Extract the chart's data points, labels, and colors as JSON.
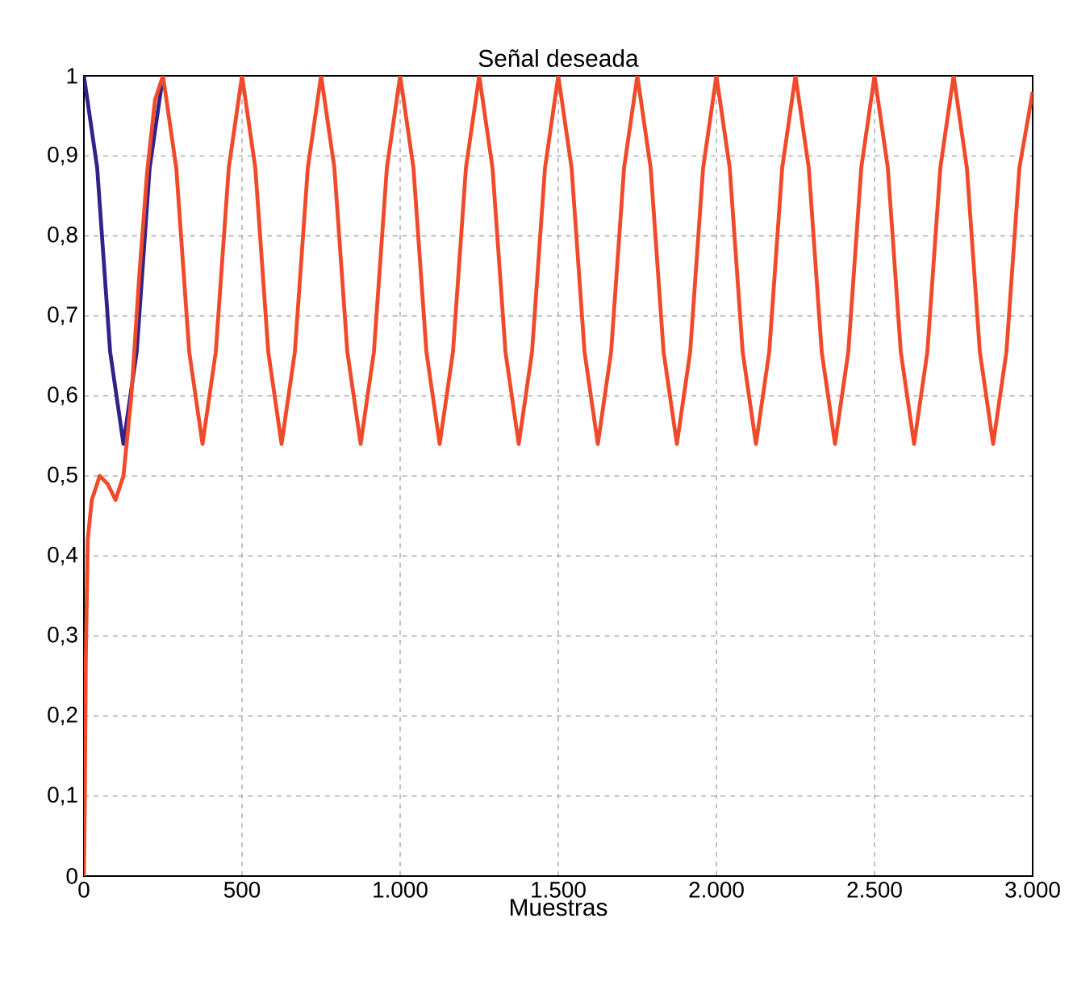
{
  "chart_data": {
    "type": "line",
    "title": "Señal deseada",
    "xlabel": "Muestras",
    "xlim": [
      0,
      3000
    ],
    "ylim": [
      0,
      1
    ],
    "xticks": [
      0,
      500,
      {
        "value": 1000,
        "label": "1.000"
      },
      {
        "value": 1500,
        "label": "1.500"
      },
      {
        "value": 2000,
        "label": "2.000"
      },
      {
        "value": 2500,
        "label": "2.500"
      },
      {
        "value": 3000,
        "label": "3.000"
      }
    ],
    "yticks": [
      0,
      {
        "value": 0.1,
        "label": "0,1"
      },
      {
        "value": 0.2,
        "label": "0,2"
      },
      {
        "value": 0.3,
        "label": "0,3"
      },
      {
        "value": 0.4,
        "label": "0,4"
      },
      {
        "value": 0.5,
        "label": "0,5"
      },
      {
        "value": 0.6,
        "label": "0,6"
      },
      {
        "value": 0.7,
        "label": "0,7"
      },
      {
        "value": 0.8,
        "label": "0,8"
      },
      {
        "value": 0.9,
        "label": "0,9"
      },
      1
    ],
    "grid": true,
    "line_style": "solid",
    "marker": "none",
    "series": [
      {
        "color": "#33218a",
        "x": [
          0,
          42,
          83,
          125,
          167,
          208,
          250
        ],
        "values": [
          1,
          0.885,
          0.655,
          0.54,
          0.655,
          0.885,
          1
        ]
      },
      {
        "color": "#f04a2a",
        "x": [
          0,
          3,
          6,
          12,
          25,
          50,
          75,
          100,
          125,
          150,
          175,
          200,
          225,
          250,
          292,
          333,
          375,
          417,
          458,
          500,
          542,
          583,
          625,
          667,
          708,
          750,
          792,
          833,
          875,
          917,
          958,
          1000,
          1042,
          1083,
          1125,
          1167,
          1208,
          1250,
          1292,
          1333,
          1375,
          1417,
          1458,
          1500,
          1542,
          1583,
          1625,
          1667,
          1708,
          1750,
          1792,
          1833,
          1875,
          1917,
          1958,
          2000,
          2042,
          2083,
          2125,
          2167,
          2208,
          2250,
          2292,
          2333,
          2375,
          2417,
          2458,
          2500,
          2542,
          2583,
          2625,
          2667,
          2708,
          2750,
          2792,
          2833,
          2875,
          2917,
          2958,
          3000
        ],
        "values": [
          0,
          0.1,
          0.27,
          0.42,
          0.47,
          0.5,
          0.49,
          0.47,
          0.5,
          0.6,
          0.75,
          0.88,
          0.97,
          1,
          0.885,
          0.655,
          0.54,
          0.655,
          0.885,
          1,
          0.885,
          0.655,
          0.54,
          0.655,
          0.885,
          1,
          0.885,
          0.655,
          0.54,
          0.655,
          0.885,
          1,
          0.885,
          0.655,
          0.54,
          0.655,
          0.885,
          1,
          0.885,
          0.655,
          0.54,
          0.655,
          0.885,
          1,
          0.885,
          0.655,
          0.54,
          0.655,
          0.885,
          1,
          0.885,
          0.655,
          0.54,
          0.655,
          0.885,
          1,
          0.885,
          0.655,
          0.54,
          0.655,
          0.885,
          1,
          0.885,
          0.655,
          0.54,
          0.655,
          0.885,
          1,
          0.885,
          0.655,
          0.54,
          0.655,
          0.885,
          1,
          0.885,
          0.655,
          0.54,
          0.655,
          0.885,
          0.98
        ]
      }
    ]
  }
}
